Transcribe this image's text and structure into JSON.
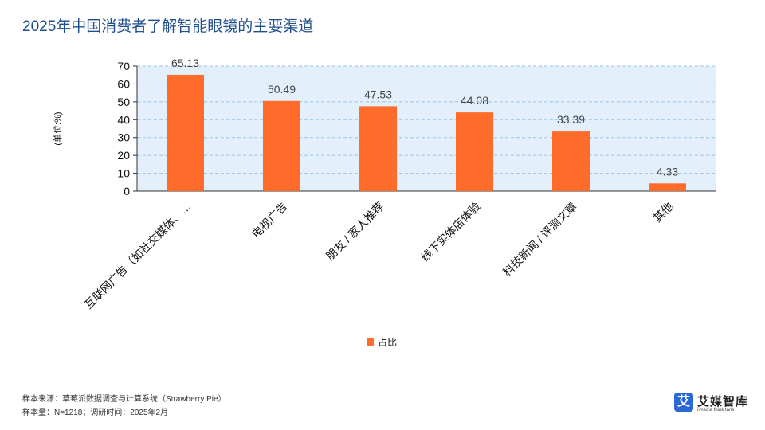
{
  "title": "2025年中国消费者了解智能眼镜的主要渠道",
  "chart_data": {
    "type": "bar",
    "categories": [
      "互联网广告（如社交媒体、…",
      "电视广告",
      "朋友 / 家人推荐",
      "线下实体店体验",
      "科技新闻 / 评测文章",
      "其他"
    ],
    "series": [
      {
        "name": "占比",
        "values": [
          65.13,
          50.49,
          47.53,
          44.08,
          33.39,
          4.33
        ]
      }
    ],
    "value_labels": [
      "65.13",
      "50.49",
      "47.53",
      "44.08",
      "33.39",
      "4.33"
    ],
    "ylabel": "(单位:%)",
    "ylim": [
      0,
      70
    ],
    "yticks": [
      "0",
      "10",
      "20",
      "30",
      "40",
      "50",
      "60",
      "70"
    ],
    "grid": true,
    "legend": "bottom-center",
    "bar_color": "#ff6b2b",
    "plot_bg": "#e3f0fb",
    "grid_color": "#9cc3e4"
  },
  "footer": {
    "source": "样本来源：草莓派数据调查与计算系统（Strawberry Pie）",
    "sample": "样本量：N=1218；调研时间：2025年2月"
  },
  "logo": {
    "badge": "艾",
    "name": "艾媒智库",
    "sub": "iimedia think tank"
  }
}
